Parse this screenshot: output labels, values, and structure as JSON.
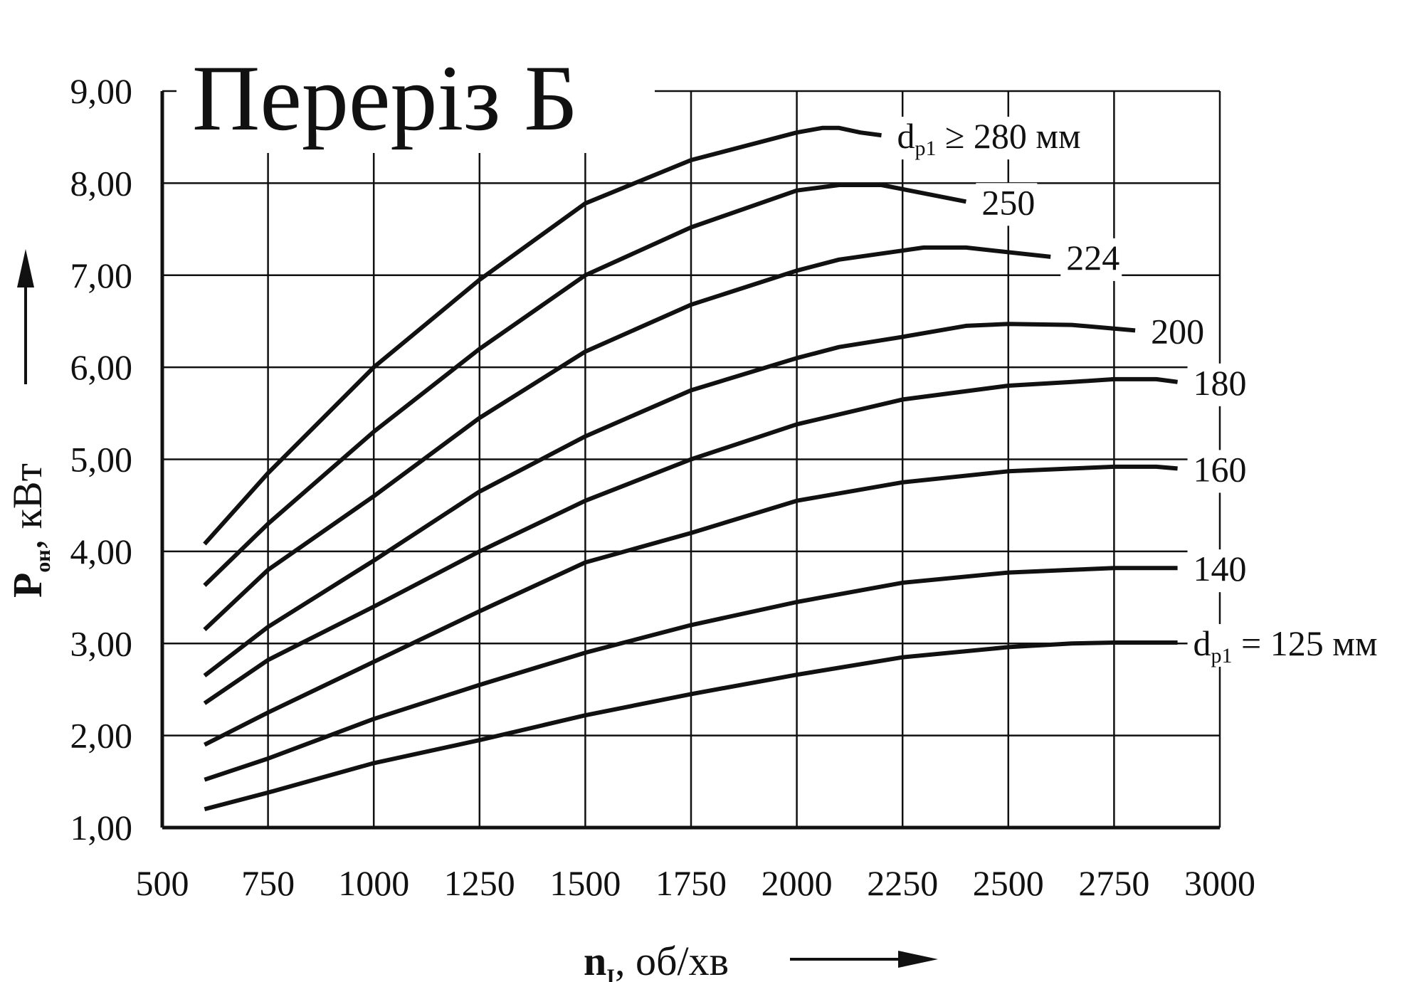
{
  "chart_data": {
    "type": "line",
    "title": "Переріз Б",
    "xlabel": {
      "main": "n",
      "sub": "I",
      "rest": ", об/хв"
    },
    "ylabel": {
      "main": "P",
      "sub": "он",
      "rest": ", кВт"
    },
    "xlim": [
      500,
      3000
    ],
    "ylim": [
      1.0,
      9.0
    ],
    "x_ticks": [
      500,
      750,
      1000,
      1250,
      1500,
      1750,
      2000,
      2250,
      2500,
      2750,
      3000
    ],
    "x_tick_labels": [
      "500",
      "750",
      "1000",
      "1250",
      "1500",
      "1750",
      "2000",
      "2250",
      "2500",
      "2750",
      "3000"
    ],
    "y_ticks": [
      1,
      2,
      3,
      4,
      5,
      6,
      7,
      8,
      9
    ],
    "y_tick_labels": [
      "1,00",
      "2,00",
      "3,00",
      "4,00",
      "5,00",
      "6,00",
      "7,00",
      "8,00",
      "9,00"
    ],
    "grid": true,
    "series": [
      {
        "name": "d_p1 = 125 мм",
        "label": "d",
        "label_sub": "p1",
        "label_rest": " = 125 мм",
        "x": [
          600,
          750,
          1000,
          1250,
          1500,
          1750,
          2000,
          2250,
          2500,
          2650,
          2750,
          2900
        ],
        "y": [
          1.2,
          1.38,
          1.7,
          1.95,
          2.22,
          2.45,
          2.66,
          2.85,
          2.96,
          3.0,
          3.01,
          3.01
        ]
      },
      {
        "name": "140",
        "label": "140",
        "x": [
          600,
          750,
          1000,
          1250,
          1500,
          1750,
          2000,
          2250,
          2500,
          2650,
          2750,
          2900
        ],
        "y": [
          1.52,
          1.75,
          2.18,
          2.55,
          2.9,
          3.2,
          3.45,
          3.66,
          3.77,
          3.8,
          3.82,
          3.82
        ]
      },
      {
        "name": "160",
        "label": "160",
        "x": [
          600,
          750,
          1000,
          1250,
          1500,
          1750,
          2000,
          2250,
          2500,
          2650,
          2750,
          2850,
          2900
        ],
        "y": [
          1.9,
          2.25,
          2.8,
          3.35,
          3.88,
          4.2,
          4.55,
          4.75,
          4.87,
          4.9,
          4.92,
          4.92,
          4.9
        ]
      },
      {
        "name": "180",
        "label": "180",
        "x": [
          600,
          750,
          1000,
          1250,
          1500,
          1750,
          2000,
          2250,
          2500,
          2650,
          2750,
          2850,
          2900
        ],
        "y": [
          2.35,
          2.82,
          3.4,
          4.0,
          4.55,
          5.0,
          5.38,
          5.65,
          5.8,
          5.84,
          5.87,
          5.87,
          5.84
        ]
      },
      {
        "name": "200",
        "label": "200",
        "x": [
          600,
          750,
          1000,
          1250,
          1500,
          1750,
          2000,
          2100,
          2250,
          2400,
          2500,
          2650,
          2800
        ],
        "y": [
          2.65,
          3.18,
          3.9,
          4.65,
          5.25,
          5.75,
          6.1,
          6.22,
          6.33,
          6.45,
          6.47,
          6.46,
          6.4
        ]
      },
      {
        "name": "224",
        "label": "224",
        "x": [
          600,
          750,
          1000,
          1250,
          1500,
          1750,
          2000,
          2100,
          2300,
          2400,
          2600
        ],
        "y": [
          3.15,
          3.8,
          4.6,
          5.45,
          6.17,
          6.68,
          7.05,
          7.17,
          7.3,
          7.3,
          7.2
        ]
      },
      {
        "name": "250",
        "label": "250",
        "x": [
          600,
          750,
          1000,
          1250,
          1500,
          1750,
          2000,
          2100,
          2200,
          2400
        ],
        "y": [
          3.63,
          4.3,
          5.3,
          6.2,
          7.0,
          7.52,
          7.92,
          7.98,
          7.98,
          7.8
        ]
      },
      {
        "name": "d_p1 ≥ 280 мм",
        "label": "d",
        "label_sub": "p1",
        "label_rest": " ≥ 280 мм",
        "x": [
          600,
          750,
          1000,
          1250,
          1500,
          1750,
          2000,
          2060,
          2100,
          2150,
          2200
        ],
        "y": [
          4.08,
          4.85,
          6.0,
          6.95,
          7.78,
          8.25,
          8.55,
          8.6,
          8.6,
          8.55,
          8.52
        ]
      }
    ]
  }
}
